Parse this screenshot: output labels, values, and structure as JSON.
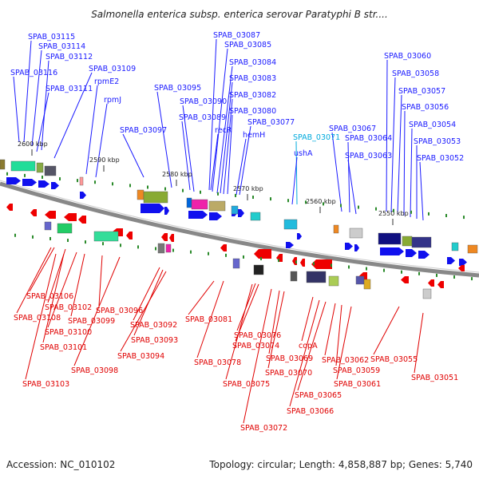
{
  "header": {
    "title": "Salmonella enterica subsp. enterica serovar Paratyphi B str...."
  },
  "footer": {
    "accession": "Accession: NC_010102",
    "summary": "Topology: circular; Length: 4,858,887 bp; Genes: 5,740"
  },
  "colors": {
    "forward_label": "#1a1aff",
    "reverse_label": "#e00000",
    "rna_label": "#00aadd",
    "backbone": "#888888"
  },
  "ticks": [
    "2600 kbp",
    "2590 kbp",
    "2580 kbp",
    "2570 kbp",
    "2560 kbp",
    "2550 kbp"
  ],
  "forward_labels": [
    "SPAB_03115",
    "SPAB_03114",
    "SPAB_03112",
    "SPAB_03116",
    "SPAB_03109",
    "SPAB_03111",
    "rpmE2",
    "rpmJ",
    "SPAB_03097",
    "SPAB_03095",
    "SPAB_03090",
    "SPAB_03089",
    "SPAB_03087",
    "SPAB_03085",
    "SPAB_03084",
    "SPAB_03083",
    "SPAB_03082",
    "SPAB_03080",
    "recR",
    "SPAB_03077",
    "hemH",
    "SPAB_03071",
    "ushA",
    "SPAB_03067",
    "SPAB_03064",
    "SPAB_03063",
    "SPAB_03060",
    "SPAB_03058",
    "SPAB_03057",
    "SPAB_03056",
    "SPAB_03054",
    "SPAB_03053",
    "SPAB_03052"
  ],
  "reverse_labels": [
    "SPAB_03106",
    "SPAB_03102",
    "SPAB_03108",
    "SPAB_03099",
    "SPAB_03100",
    "SPAB_03096",
    "SPAB_03101",
    "SPAB_03098",
    "SPAB_03103",
    "SPAB_03092",
    "SPAB_03093",
    "SPAB_03094",
    "SPAB_03081",
    "SPAB_03076",
    "SPAB_03074",
    "SPAB_03078",
    "copA",
    "SPAB_03069",
    "SPAB_03070",
    "SPAB_03075",
    "SPAB_03062",
    "SPAB_03059",
    "SPAB_03061",
    "SPAB_03055",
    "SPAB_03065",
    "SPAB_03051",
    "SPAB_03066",
    "SPAB_03072"
  ]
}
